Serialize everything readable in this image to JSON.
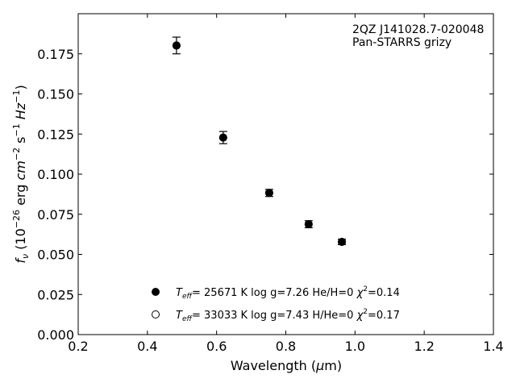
{
  "chart_data": {
    "type": "scatter",
    "annotation": [
      "2QZ J141028.7-020048",
      "Pan-STARRS grizy"
    ],
    "xlabel": {
      "main": "Wavelength (",
      "mu": "μ",
      "unit": "m)"
    },
    "ylabel": {
      "prefix": "f",
      "sub": "ν",
      "open": " (10",
      "exp1": "−26",
      "erg": " erg ",
      "cm": "cm",
      "exp2": "−2",
      "s": " s",
      "exp3": "−1",
      "hz": " Hz",
      "exp4": "−1",
      "close": ")"
    },
    "xlim": [
      0.2,
      1.4
    ],
    "ylim": [
      0.0,
      0.2
    ],
    "xticks": [
      "0.2",
      "0.4",
      "0.6",
      "0.8",
      "1.0",
      "1.2",
      "1.4"
    ],
    "yticks": [
      "0.000",
      "0.025",
      "0.050",
      "0.075",
      "0.100",
      "0.125",
      "0.150",
      "0.175"
    ],
    "series": [
      {
        "marker": "filled-circle",
        "x": [
          0.484,
          0.619,
          0.752,
          0.866,
          0.962
        ],
        "y": [
          0.1802,
          0.1228,
          0.0883,
          0.0688,
          0.0578
        ],
        "yerr": [
          0.0052,
          0.0038,
          0.0022,
          0.0022,
          0.0017
        ]
      },
      {
        "marker": "open-circle",
        "x": [
          0.484,
          0.619,
          0.752,
          0.866,
          0.962
        ],
        "y": [
          0.1802,
          0.1228,
          0.0883,
          0.0688,
          0.0578
        ]
      }
    ],
    "legend": [
      {
        "marker": "filled-circle",
        "teff": "T",
        "teff_sub": "eff",
        "text1": "= 25671 K  log g=7.26  He/H=0  ",
        "chi": "χ",
        "chi_sup": "2",
        "text2": "=0.14"
      },
      {
        "marker": "open-circle",
        "teff": "T",
        "teff_sub": "eff",
        "text1": "= 33033 K  log g=7.43  H/He=0  ",
        "chi": "χ",
        "chi_sup": "2",
        "text2": "=0.17"
      }
    ],
    "legend_position": "lower-center",
    "grid": false
  }
}
